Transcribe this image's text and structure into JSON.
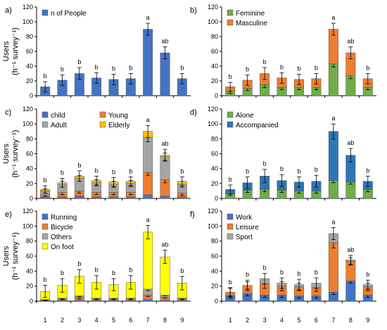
{
  "chart_data": [
    {
      "type": "bar",
      "stacked": true,
      "panel": "a)",
      "categories": [
        "1",
        "2",
        "3",
        "4",
        "5",
        "6",
        "7",
        "8",
        "9"
      ],
      "ylim": [
        0,
        120
      ],
      "yticks": [
        0,
        20,
        40,
        60,
        80,
        100,
        120
      ],
      "ylabel_line1": "Users",
      "ylabel_line2": "(h⁻¹ survey⁻¹)",
      "legend_position": "top-left",
      "series": [
        {
          "name": "n of People",
          "color": "#4472C4",
          "values": [
            12,
            21,
            30,
            24,
            22,
            23,
            90,
            58,
            23
          ],
          "errors": [
            7,
            7,
            8,
            7,
            7,
            7,
            8,
            8,
            7
          ]
        }
      ],
      "significance": [
        "b",
        "b",
        "b",
        "b",
        "b",
        "b",
        "a",
        "ab",
        "b"
      ]
    },
    {
      "type": "bar",
      "stacked": true,
      "panel": "b)",
      "categories": [
        "1",
        "2",
        "3",
        "4",
        "5",
        "6",
        "7",
        "8",
        "9"
      ],
      "ylim": [
        0,
        120
      ],
      "yticks": [
        0,
        20,
        40,
        60,
        80,
        100,
        120
      ],
      "legend_position": "top-left",
      "series": [
        {
          "name": "Feminine",
          "color": "#70AD47",
          "values": [
            6,
            10,
            15,
            11,
            11,
            11,
            43,
            27,
            11
          ],
          "errors": [
            3,
            3,
            4,
            3,
            3,
            3,
            4,
            4,
            3
          ]
        },
        {
          "name": "Masculine",
          "color": "#ED7D31",
          "values": [
            6,
            11,
            15,
            13,
            11,
            12,
            47,
            31,
            12
          ],
          "errors": [
            6,
            7,
            8,
            7,
            7,
            7,
            8,
            8,
            7
          ]
        }
      ],
      "significance": [
        "b",
        "b",
        "b",
        "b",
        "b",
        "b",
        "a",
        "ab",
        "b"
      ]
    },
    {
      "type": "bar",
      "stacked": true,
      "panel": "c)",
      "categories": [
        "1",
        "2",
        "3",
        "4",
        "5",
        "6",
        "7",
        "8",
        "9"
      ],
      "ylim": [
        0,
        120
      ],
      "yticks": [
        0,
        20,
        40,
        60,
        80,
        100,
        120
      ],
      "ylabel_line1": "Users",
      "ylabel_line2": "(h⁻¹ survey⁻¹)",
      "legend_position": "top-left",
      "series": [
        {
          "name": "child",
          "color": "#4472C4",
          "values": [
            2,
            2,
            3,
            2,
            2,
            2,
            5,
            3,
            2
          ],
          "errors": [
            0,
            0,
            0,
            0,
            0,
            0,
            0,
            0,
            0
          ]
        },
        {
          "name": "Young",
          "color": "#ED7D31",
          "values": [
            3,
            6,
            7,
            6,
            6,
            6,
            30,
            22,
            5
          ],
          "errors": [
            2,
            3,
            3,
            3,
            3,
            3,
            4,
            4,
            3
          ]
        },
        {
          "name": "Adult",
          "color": "#A5A5A5",
          "values": [
            5,
            11,
            17,
            13,
            11,
            12,
            47,
            31,
            12
          ],
          "errors": [
            3,
            4,
            4,
            4,
            4,
            4,
            6,
            5,
            4
          ]
        },
        {
          "name": "Elderly",
          "color": "#FFC000",
          "values": [
            2,
            2,
            3,
            3,
            3,
            3,
            8,
            2,
            4
          ],
          "errors": [
            5,
            6,
            7,
            6,
            6,
            6,
            8,
            8,
            6
          ]
        }
      ],
      "significance": [
        "b",
        "b",
        "b",
        "b",
        "b",
        "b",
        "a",
        "ab",
        "b"
      ]
    },
    {
      "type": "bar",
      "stacked": true,
      "panel": "d)",
      "categories": [
        "1",
        "2",
        "3",
        "4",
        "5",
        "6",
        "7",
        "8",
        "9"
      ],
      "ylim": [
        0,
        120
      ],
      "yticks": [
        0,
        20,
        40,
        60,
        80,
        100,
        120
      ],
      "legend_position": "top-left",
      "series": [
        {
          "name": "Alone",
          "color": "#70AD47",
          "values": [
            6,
            11,
            12,
            11,
            10,
            10,
            24,
            22,
            12
          ],
          "errors": [
            2,
            3,
            3,
            3,
            3,
            3,
            3,
            3,
            3
          ]
        },
        {
          "name": "Accompanied",
          "color": "#2E75B6",
          "values": [
            6,
            10,
            18,
            13,
            12,
            13,
            66,
            36,
            11
          ],
          "errors": [
            6,
            8,
            9,
            8,
            7,
            8,
            10,
            9,
            7
          ]
        }
      ],
      "significance": [
        "b",
        "b",
        "b",
        "b",
        "b",
        "b",
        "a",
        "ab",
        "b"
      ]
    },
    {
      "type": "bar",
      "stacked": true,
      "panel": "e)",
      "categories": [
        "1",
        "2",
        "3",
        "4",
        "5",
        "6",
        "7",
        "8",
        "9"
      ],
      "ylim": [
        0,
        120
      ],
      "yticks": [
        0,
        20,
        40,
        60,
        80,
        100,
        120
      ],
      "ylabel_line1": "Users",
      "ylabel_line2": "(h⁻¹ survey⁻¹)",
      "legend_position": "top-left",
      "series": [
        {
          "name": "Running",
          "color": "#4472C4",
          "values": [
            0.5,
            1,
            1,
            1,
            1,
            1,
            2,
            1,
            1
          ],
          "errors": [
            0,
            0,
            0,
            0,
            0,
            0,
            0,
            0,
            0
          ]
        },
        {
          "name": "Bicycle",
          "color": "#ED7D31",
          "values": [
            1,
            2,
            4,
            2,
            2,
            2,
            6,
            4,
            2
          ],
          "errors": [
            1,
            1,
            2,
            1,
            1,
            1,
            2,
            1,
            1
          ]
        },
        {
          "name": "Others",
          "color": "#A5A5A5",
          "values": [
            0.5,
            1,
            2,
            1,
            1,
            1,
            8,
            3,
            1
          ],
          "errors": [
            1,
            1,
            1,
            1,
            1,
            1,
            2,
            1,
            1
          ]
        },
        {
          "name": "On foot",
          "color": "#FFFF00",
          "values": [
            11,
            17,
            26,
            21,
            18,
            21,
            76,
            51,
            20
          ],
          "errors": [
            8,
            9,
            9,
            9,
            8,
            9,
            9,
            9,
            9
          ]
        }
      ],
      "significance": [
        "b",
        "b",
        "b",
        "b",
        "b",
        "b",
        "a",
        "ab",
        "b"
      ]
    },
    {
      "type": "bar",
      "stacked": true,
      "panel": "f)",
      "categories": [
        "1",
        "2",
        "3",
        "4",
        "5",
        "6",
        "7",
        "8",
        "9"
      ],
      "ylim": [
        0,
        120
      ],
      "yticks": [
        0,
        20,
        40,
        60,
        80,
        100,
        120
      ],
      "legend_position": "top-left",
      "series": [
        {
          "name": "Work",
          "color": "#4472C4",
          "values": [
            7,
            10,
            8,
            8,
            7,
            7,
            12,
            27,
            8
          ],
          "errors": [
            3,
            3,
            3,
            3,
            3,
            3,
            3,
            3,
            3
          ]
        },
        {
          "name": "Leisure",
          "color": "#ED7D31",
          "values": [
            5,
            11,
            15,
            12,
            12,
            11,
            66,
            26,
            11
          ],
          "errors": [
            5,
            5,
            6,
            6,
            5,
            5,
            7,
            5,
            5
          ]
        },
        {
          "name": "Sport",
          "color": "#A5A5A5",
          "values": [
            0,
            0,
            7,
            4,
            3,
            6,
            12,
            2,
            3
          ],
          "errors": [
            6,
            7,
            7,
            7,
            7,
            7,
            8,
            6,
            6
          ]
        }
      ],
      "significance": [
        "b",
        "b",
        "b",
        "b",
        "b",
        "b",
        "a",
        "ab",
        "b"
      ]
    }
  ]
}
